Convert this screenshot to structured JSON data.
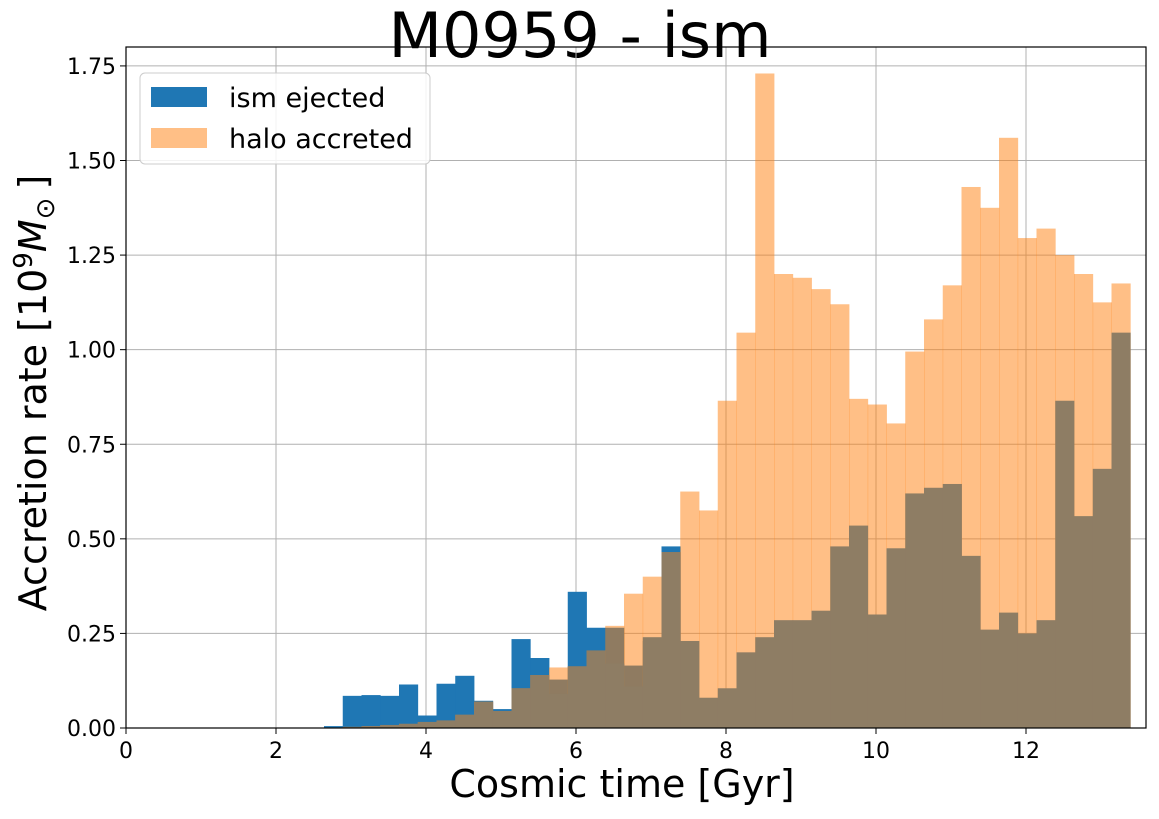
{
  "chart_data": {
    "type": "bar",
    "title": "M0959 - ism",
    "xlabel": "Cosmic time [Gyr]",
    "ylabel_text": "Accretion rate [10",
    "ylabel_exp": "9",
    "ylabel_unit": "M",
    "ylabel_sub": "⊙",
    "ylabel_close": "]",
    "xlim": [
      0,
      13.6
    ],
    "ylim": [
      0,
      1.8
    ],
    "xticks": [
      0,
      2,
      4,
      6,
      8,
      10,
      12
    ],
    "xtick_labels": [
      "0",
      "2",
      "4",
      "6",
      "8",
      "10",
      "12"
    ],
    "yticks": [
      0,
      0.25,
      0.5,
      0.75,
      1.0,
      1.25,
      1.5,
      1.75
    ],
    "ytick_labels": [
      "0.00",
      "0.25",
      "0.50",
      "0.75",
      "1.00",
      "1.25",
      "1.50",
      "1.75"
    ],
    "grid": true,
    "legend_position": "top-left",
    "bin_width": 0.25,
    "series": [
      {
        "name": "ism ejected",
        "color": "#1f77b4",
        "opacity": 1,
        "bin_starts": [
          2.64,
          2.89,
          3.14,
          3.39,
          3.64,
          3.89,
          4.14,
          4.39,
          4.64,
          4.89,
          5.14,
          5.39,
          5.64,
          5.89,
          6.14,
          6.39,
          6.64,
          6.89,
          7.14
        ],
        "values": [
          0.005,
          0.085,
          0.087,
          0.085,
          0.115,
          0.033,
          0.117,
          0.138,
          0.072,
          0.05,
          0.235,
          0.185,
          0.128,
          0.36,
          0.265,
          0.265,
          0.165,
          0.23,
          0.48
        ]
      },
      {
        "name": "halo accreted",
        "color": "#ff7f0e",
        "opacity": 0.5,
        "bin_starts": [
          2.64,
          2.89,
          3.14,
          3.39,
          3.64,
          3.89,
          4.14,
          4.39,
          4.64,
          4.89,
          5.14,
          5.39,
          5.64,
          5.89,
          6.14,
          6.39,
          6.64,
          6.89,
          7.14,
          7.39,
          7.64,
          7.89,
          8.14,
          8.39,
          8.64,
          8.89,
          9.14,
          9.39,
          9.64,
          9.89,
          10.14,
          10.39,
          10.64,
          10.89,
          11.14,
          11.39,
          11.64,
          11.89,
          12.14,
          12.39,
          12.64,
          12.89,
          13.14
        ],
        "values": [
          0.0,
          0.003,
          0.005,
          0.008,
          0.011,
          0.016,
          0.02,
          0.035,
          0.07,
          0.045,
          0.105,
          0.14,
          0.16,
          0.163,
          0.205,
          0.27,
          0.355,
          0.4,
          0.465,
          0.625,
          0.575,
          0.865,
          1.045,
          1.73,
          1.2,
          1.19,
          1.16,
          1.12,
          0.87,
          0.855,
          0.805,
          0.995,
          1.08,
          1.17,
          1.43,
          1.375,
          1.56,
          1.295,
          1.32,
          1.25,
          1.2,
          1.125,
          1.175
        ]
      },
      {
        "name": "",
        "color": "#8e7d64",
        "opacity": 1,
        "bin_starts": [
          2.64,
          2.89,
          3.14,
          3.39,
          3.64,
          3.89,
          4.14,
          4.39,
          4.64,
          4.89,
          5.14,
          5.39,
          5.64,
          5.89,
          6.14,
          6.39,
          6.64,
          6.89,
          7.14,
          7.39,
          7.64,
          7.89,
          8.14,
          8.39,
          8.64,
          8.89,
          9.14,
          9.39,
          9.64,
          9.89,
          10.14,
          10.39,
          10.64,
          10.89,
          11.14,
          11.39,
          11.64,
          11.89,
          12.14,
          12.39,
          12.64,
          12.89,
          13.14
        ],
        "values": [
          0.0,
          0.003,
          0.005,
          0.008,
          0.011,
          0.016,
          0.02,
          0.035,
          0.07,
          0.045,
          0.105,
          0.14,
          0.09,
          0.163,
          0.205,
          0.17,
          0.11,
          0.24,
          0.465,
          0.23,
          0.08,
          0.105,
          0.2,
          0.24,
          0.285,
          0.285,
          0.31,
          0.48,
          0.535,
          0.3,
          0.475,
          0.62,
          0.635,
          0.645,
          0.455,
          0.26,
          0.305,
          0.25,
          0.285,
          0.865,
          0.56,
          0.685,
          1.045
        ]
      }
    ]
  }
}
